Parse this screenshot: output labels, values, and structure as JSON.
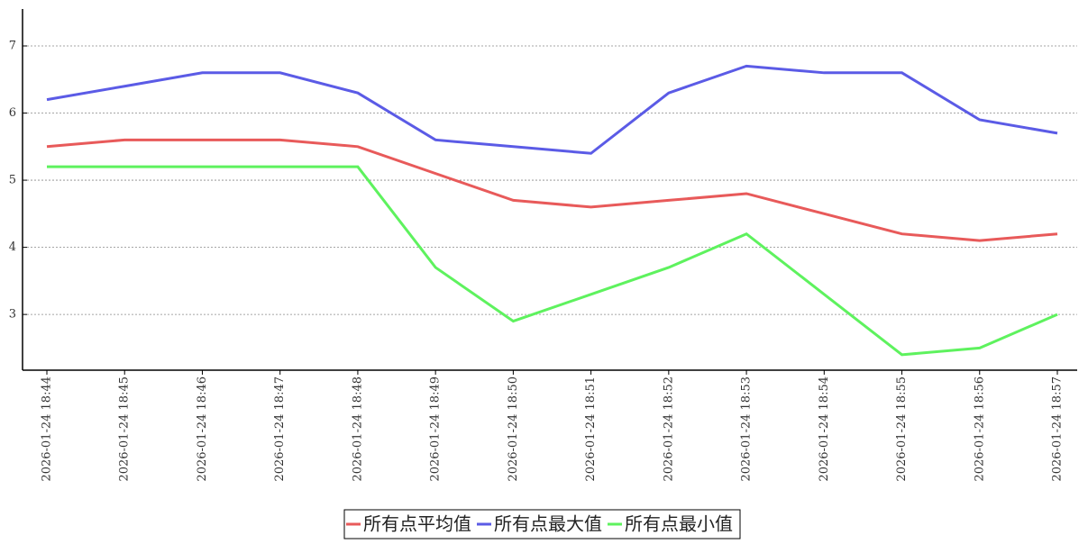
{
  "chart_data": {
    "type": "line",
    "categories": [
      "2026-01-24 18:44",
      "2026-01-24 18:45",
      "2026-01-24 18:46",
      "2026-01-24 18:47",
      "2026-01-24 18:48",
      "2026-01-24 18:49",
      "2026-01-24 18:50",
      "2026-01-24 18:51",
      "2026-01-24 18:52",
      "2026-01-24 18:53",
      "2026-01-24 18:54",
      "2026-01-24 18:55",
      "2026-01-24 18:56",
      "2026-01-24 18:57"
    ],
    "series": [
      {
        "name": "所有点平均值",
        "color": "#e85a5a",
        "values": [
          5.5,
          5.6,
          5.6,
          5.6,
          5.5,
          5.1,
          4.7,
          4.6,
          4.7,
          4.8,
          4.5,
          4.2,
          4.1,
          4.2
        ]
      },
      {
        "name": "所有点最大值",
        "color": "#5b5be6",
        "values": [
          6.2,
          6.4,
          6.6,
          6.6,
          6.3,
          5.6,
          5.5,
          5.4,
          6.3,
          6.7,
          6.6,
          6.6,
          5.9,
          5.7
        ]
      },
      {
        "name": "所有点最小值",
        "color": "#5ef25e",
        "values": [
          5.2,
          5.2,
          5.2,
          5.2,
          5.2,
          3.7,
          2.9,
          3.3,
          3.7,
          4.2,
          3.3,
          2.4,
          2.5,
          3.0
        ]
      }
    ],
    "ylim": [
      2.17,
      7.55
    ],
    "yticks": [
      3,
      4,
      5,
      6,
      7
    ],
    "grid": true,
    "legend": "bottom"
  }
}
